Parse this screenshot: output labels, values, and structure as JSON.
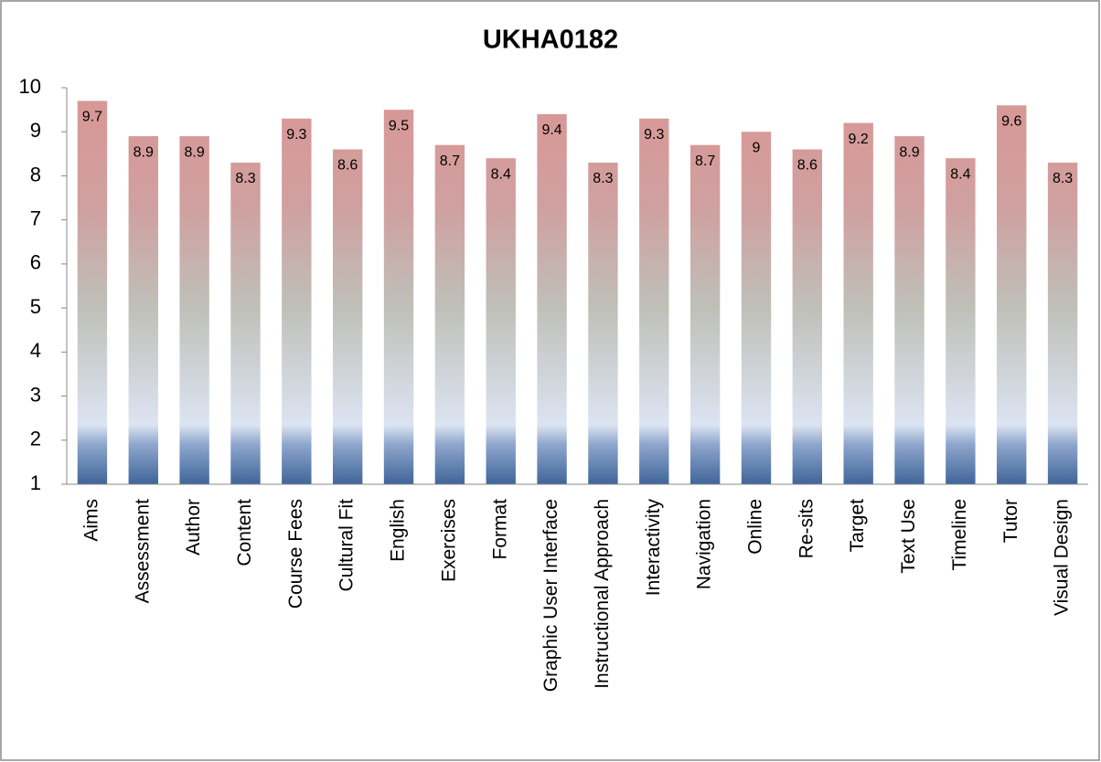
{
  "chart_data": {
    "type": "bar",
    "title": "UKHA0182",
    "categories": [
      "Aims",
      "Assessment",
      "Author",
      "Content",
      "Course Fees",
      "Cultural Fit",
      "English",
      "Exercises",
      "Format",
      "Graphic User Interface",
      "Instructional Approach",
      "Interactivity",
      "Navigation",
      "Online",
      "Re-sits",
      "Target",
      "Text Use",
      "Timeline",
      "Tutor",
      "Visual Design"
    ],
    "values": [
      9.7,
      8.9,
      8.9,
      8.3,
      9.3,
      8.6,
      9.5,
      8.7,
      8.4,
      9.4,
      8.3,
      9.3,
      8.7,
      9,
      8.6,
      9.2,
      8.9,
      8.4,
      9.6,
      8.3
    ],
    "color": "#d99694",
    "ylim": [
      1,
      10
    ],
    "yticks": [
      1,
      2,
      3,
      4,
      5,
      6,
      7,
      8,
      9,
      10
    ],
    "grid": false
  }
}
